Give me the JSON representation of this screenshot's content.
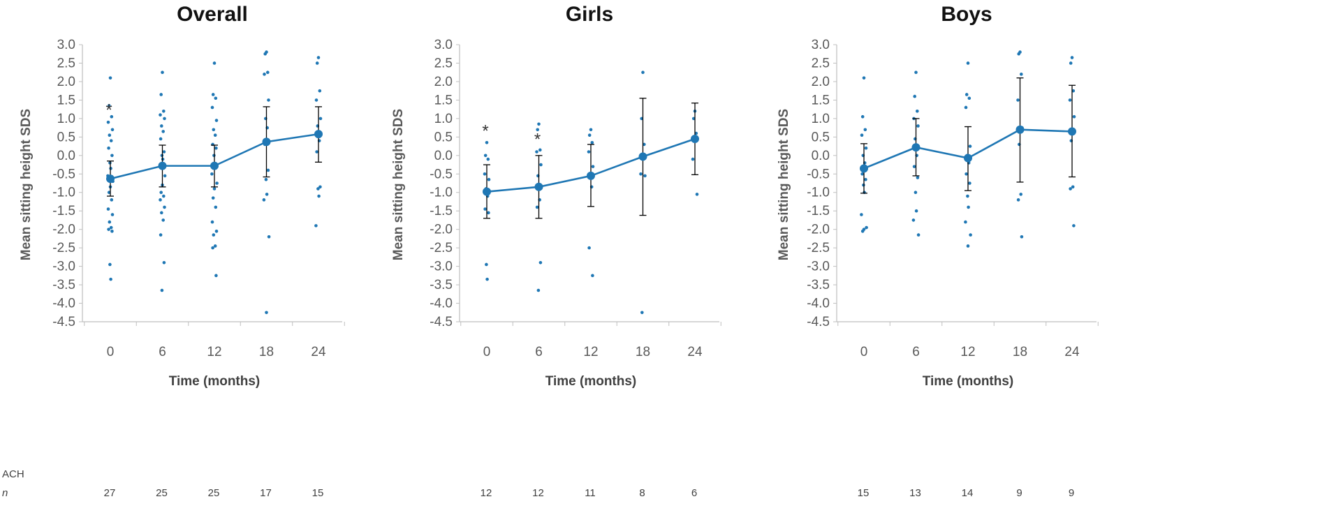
{
  "footer": {
    "group_label": "ACH",
    "n_label": "n"
  },
  "colors": {
    "series": "#1f77b4",
    "points": "#1f77b4",
    "error_bar": "#000000",
    "axis": "#bfbfbf"
  },
  "chart_data": [
    {
      "type": "line",
      "title": "Overall",
      "xlabel": "Time (months)",
      "ylabel": "Mean sitting height SDS",
      "ylim": [
        -4.5,
        3.0
      ],
      "ystep": 0.5,
      "x": [
        0,
        6,
        12,
        18,
        24
      ],
      "x_tick_labels": [
        "0",
        "6",
        "12",
        "18",
        "24"
      ],
      "y_tick_labels": [
        "3.0",
        "2.5",
        "2.0",
        "1.5",
        "1.0",
        "0.5",
        "0.0",
        "-0.5",
        "-1.0",
        "-1.5",
        "-2.0",
        "-2.5",
        "-3.0",
        "-3.5",
        "-4.0",
        "-4.5"
      ],
      "series": [
        {
          "name": "Mean sitting height SDS",
          "values": [
            -0.63,
            -0.28,
            -0.28,
            0.37,
            0.58
          ],
          "err_low": [
            -1.1,
            -0.85,
            -0.85,
            -0.58,
            -0.18
          ],
          "err_high": [
            -0.15,
            0.28,
            0.28,
            1.32,
            1.32
          ]
        }
      ],
      "individual_points": [
        [
          2.1,
          1.35,
          1.05,
          0.9,
          0.7,
          0.55,
          0.4,
          0.2,
          0.0,
          -0.2,
          -0.35,
          -0.55,
          -0.7,
          -0.85,
          -1.0,
          -1.2,
          -1.45,
          -1.6,
          -1.8,
          -1.95,
          -2.0,
          -2.05,
          -2.95,
          -3.35
        ],
        [
          2.25,
          1.65,
          1.2,
          1.1,
          1.0,
          0.8,
          0.65,
          0.45,
          0.1,
          0.0,
          -0.1,
          -0.3,
          -0.55,
          -0.8,
          -1.0,
          -1.1,
          -1.2,
          -1.4,
          -1.55,
          -1.75,
          -2.15,
          -2.9,
          -3.65
        ],
        [
          2.5,
          1.65,
          1.55,
          1.3,
          0.95,
          0.7,
          0.55,
          0.3,
          0.2,
          0.0,
          -0.25,
          -0.5,
          -0.75,
          -0.9,
          -1.15,
          -1.4,
          -1.8,
          -2.05,
          -2.15,
          -2.45,
          -2.5,
          -3.25
        ],
        [
          2.8,
          2.75,
          2.25,
          2.2,
          1.5,
          1.0,
          0.75,
          0.3,
          -0.4,
          -0.65,
          -1.05,
          -1.2,
          -2.2,
          -4.25
        ],
        [
          2.65,
          2.5,
          1.75,
          1.5,
          1.0,
          0.8,
          0.4,
          0.1,
          -0.85,
          -0.9,
          -1.1,
          -1.9
        ]
      ],
      "annotations": [
        {
          "x": 0,
          "y": 1.35,
          "text": "*"
        }
      ],
      "n_values": [
        "27",
        "25",
        "25",
        "17",
        "15"
      ]
    },
    {
      "type": "line",
      "title": "Girls",
      "xlabel": "Time (months)",
      "ylabel": "Mean sitting height SDS",
      "ylim": [
        -4.5,
        3.0
      ],
      "ystep": 0.5,
      "x": [
        0,
        6,
        12,
        18,
        24
      ],
      "x_tick_labels": [
        "0",
        "6",
        "12",
        "18",
        "24"
      ],
      "y_tick_labels": [
        "3.0",
        "2.5",
        "2.0",
        "1.5",
        "1.0",
        "0.5",
        "0.0",
        "-0.5",
        "-1.0",
        "-1.5",
        "-2.0",
        "-2.5",
        "-3.0",
        "-3.5",
        "-4.0",
        "-4.5"
      ],
      "series": [
        {
          "name": "Mean sitting height SDS",
          "values": [
            -0.98,
            -0.85,
            -0.55,
            -0.03,
            0.45
          ],
          "err_low": [
            -1.7,
            -1.7,
            -1.38,
            -1.62,
            -0.52
          ],
          "err_high": [
            -0.25,
            0.0,
            0.3,
            1.55,
            1.42
          ]
        }
      ],
      "individual_points": [
        [
          0.35,
          0.0,
          -0.1,
          -0.5,
          -0.65,
          -0.9,
          -1.1,
          -1.45,
          -1.55,
          -2.95,
          -3.35
        ],
        [
          0.85,
          0.7,
          0.15,
          0.1,
          -0.25,
          -0.55,
          -1.2,
          -1.4,
          -2.9,
          -3.65
        ],
        [
          0.7,
          0.55,
          0.35,
          0.1,
          -0.3,
          -0.55,
          -0.85,
          -2.5,
          -3.25
        ],
        [
          2.25,
          1.0,
          0.3,
          -0.5,
          -0.55,
          -4.25
        ],
        [
          1.2,
          1.0,
          0.6,
          -0.1,
          -1.05
        ]
      ],
      "annotations": [
        {
          "x": 0,
          "y": 0.78,
          "text": "*"
        },
        {
          "x": 6,
          "y": 0.55,
          "text": "*"
        }
      ],
      "n_values": [
        "12",
        "12",
        "11",
        "8",
        "6"
      ]
    },
    {
      "type": "line",
      "title": "Boys",
      "xlabel": "Time (months)",
      "ylabel": "Mean sitting height SDS",
      "ylim": [
        -4.5,
        3.0
      ],
      "ystep": 0.5,
      "x": [
        0,
        6,
        12,
        18,
        24
      ],
      "x_tick_labels": [
        "0",
        "6",
        "12",
        "18",
        "24"
      ],
      "y_tick_labels": [
        "3.0",
        "2.5",
        "2.0",
        "1.5",
        "1.0",
        "0.5",
        "0.0",
        "-0.5",
        "-1.0",
        "-1.5",
        "-2.0",
        "-2.5",
        "-3.0",
        "-3.5",
        "-4.0",
        "-4.5"
      ],
      "series": [
        {
          "name": "Mean sitting height SDS",
          "values": [
            -0.35,
            0.22,
            -0.07,
            0.7,
            0.65
          ],
          "err_low": [
            -1.02,
            -0.55,
            -0.95,
            -0.72,
            -0.58
          ],
          "err_high": [
            0.32,
            1.0,
            0.78,
            2.1,
            1.9
          ]
        }
      ],
      "individual_points": [
        [
          2.1,
          1.05,
          0.7,
          0.55,
          0.2,
          0.0,
          -0.2,
          -0.5,
          -0.65,
          -0.8,
          -1.0,
          -1.6,
          -1.95,
          -2.0,
          -2.05
        ],
        [
          2.25,
          1.6,
          1.2,
          1.0,
          0.8,
          0.45,
          0.0,
          -0.3,
          -0.6,
          -1.0,
          -1.5,
          -1.75,
          -2.15
        ],
        [
          2.5,
          1.65,
          1.55,
          1.3,
          0.25,
          0.0,
          -0.2,
          -0.5,
          -0.75,
          -1.1,
          -1.4,
          -1.8,
          -2.15,
          -2.45
        ],
        [
          2.8,
          2.75,
          2.2,
          1.5,
          0.75,
          0.3,
          -1.05,
          -1.2,
          -2.2
        ],
        [
          2.65,
          2.5,
          1.75,
          1.5,
          1.05,
          0.4,
          -0.85,
          -0.9,
          -1.9
        ]
      ],
      "annotations": [],
      "n_values": [
        "15",
        "13",
        "14",
        "9",
        "9"
      ]
    }
  ]
}
